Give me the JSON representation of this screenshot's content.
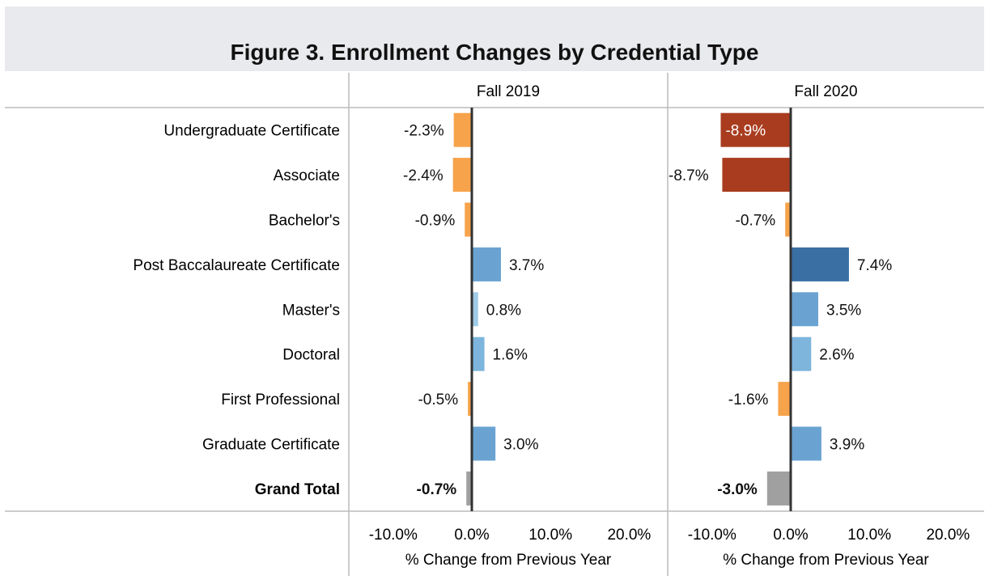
{
  "title": "Figure 3. Enrollment Changes by Credential Type",
  "colors": {
    "neg_light": "#f7a34b",
    "neg_dark": "#a93c1f",
    "pos_pale": "#9fcae7",
    "pos_light": "#7db5dc",
    "pos_mid": "#6aa3d2",
    "pos_dark": "#3a6fa4",
    "total": "#a0a0a0",
    "zero_line": "#333333",
    "grid_line": "#bbbbbb"
  },
  "chart_data": {
    "type": "bar",
    "orientation": "horizontal",
    "categories": [
      "Undergraduate Certificate",
      "Associate",
      "Bachelor's",
      "Post Baccalaureate Certificate",
      "Master's",
      "Doctoral",
      "First Professional",
      "Graduate Certificate",
      "Grand Total"
    ],
    "bold_categories": [
      "Grand Total"
    ],
    "series": [
      {
        "name": "Fall 2019",
        "values": [
          -2.3,
          -2.4,
          -0.9,
          3.7,
          0.8,
          1.6,
          -0.5,
          3.0,
          -0.7
        ],
        "labels": [
          "-2.3%",
          "-2.4%",
          "-0.9%",
          "3.7%",
          "0.8%",
          "1.6%",
          "-0.5%",
          "3.0%",
          "-0.7%"
        ],
        "colors": [
          "neg_light",
          "neg_light",
          "neg_light",
          "pos_mid",
          "pos_pale",
          "pos_light",
          "neg_light",
          "pos_mid",
          "total"
        ]
      },
      {
        "name": "Fall 2020",
        "values": [
          -8.9,
          -8.7,
          -0.7,
          7.4,
          3.5,
          2.6,
          -1.6,
          3.9,
          -3.0
        ],
        "labels": [
          "-8.9%",
          "-8.7%",
          "-0.7%",
          "7.4%",
          "3.5%",
          "2.6%",
          "-1.6%",
          "3.9%",
          "-3.0%"
        ],
        "colors": [
          "neg_dark",
          "neg_dark",
          "neg_light",
          "pos_dark",
          "pos_mid",
          "pos_light",
          "neg_light",
          "pos_mid",
          "total"
        ]
      }
    ],
    "xlim": [
      -15,
      21
    ],
    "xticks": [
      -10,
      0,
      10,
      20
    ],
    "xtick_labels": [
      "-10.0%",
      "0.0%",
      "10.0%",
      "20.0%"
    ],
    "xlabel": "% Change from Previous Year",
    "ylabel": "",
    "legend": "none",
    "grid": false
  }
}
